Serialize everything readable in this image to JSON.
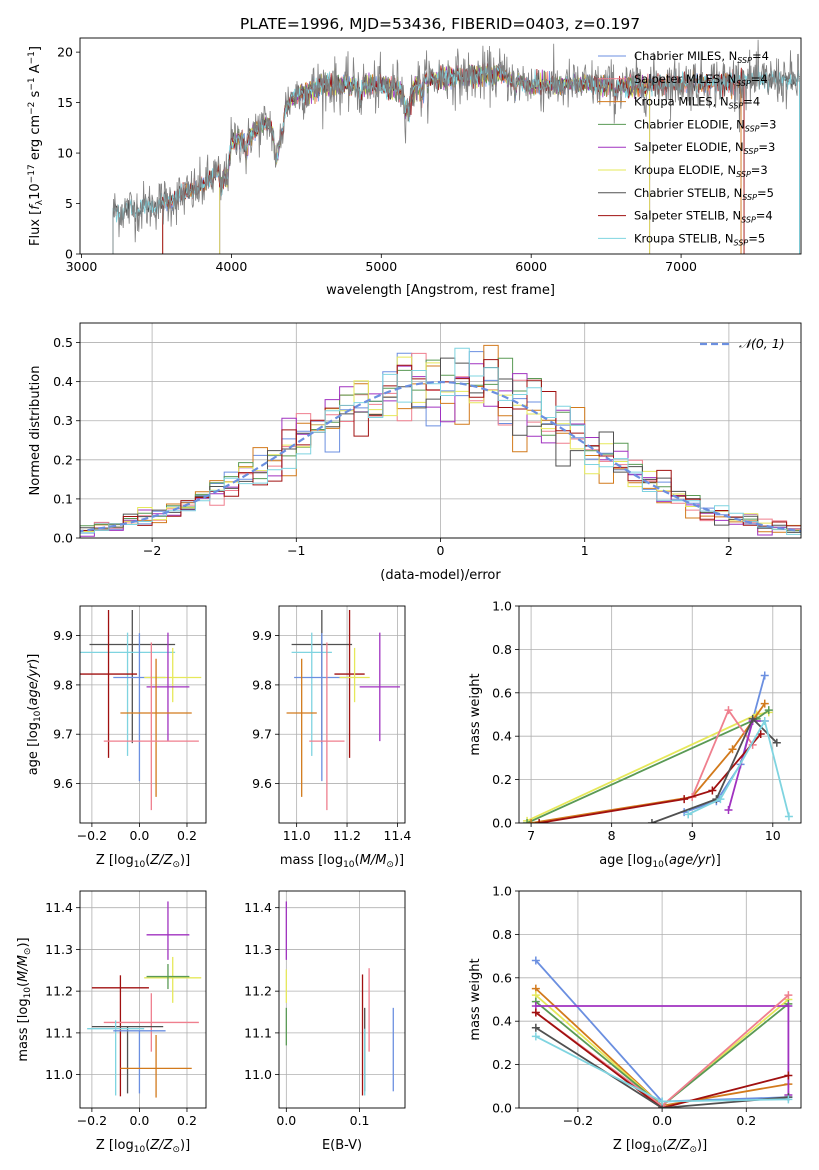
{
  "figure": {
    "title": "PLATE=1996, MJD=53436, FIBERID=0403, z=0.197"
  },
  "colors": {
    "Chabrier MILES": "#6b8fe0",
    "Salpeter MILES": "#ef7f8e",
    "Kroupa MILES": "#d27a1c",
    "Chabrier ELODIE": "#5a9a55",
    "Salpeter ELODIE": "#a032c0",
    "Kroupa ELODIE": "#e6e85a",
    "Chabrier STELIB": "#505050",
    "Salpeter STELIB": "#a01010",
    "Kroupa STELIB": "#7fd4e0",
    "data": "#808080",
    "normal": "#6b8fe0",
    "orangeB": "#e07020",
    "pinkB": "#e080c0",
    "limeB": "#a0e040"
  },
  "chart_data": [
    {
      "id": "spectrum",
      "type": "line",
      "xlabel": "wavelength [Angstrom, rest frame]",
      "ylabel": "Flux [f_λ10^-17 erg cm^-2 s^-1 A^-1]",
      "xlim": [
        2990,
        7800
      ],
      "ylim": [
        0,
        21.4
      ],
      "xticks": [
        3000,
        4000,
        5000,
        6000,
        7000
      ],
      "yticks": [
        0,
        5,
        10,
        15,
        20
      ],
      "grid": false,
      "legend_position": "upper-right",
      "legend": [
        {
          "series": "Chabrier MILES",
          "label": "Chabrier MILES, N",
          "sub": "SSP",
          "suffix": "=4"
        },
        {
          "series": "Salpeter MILES",
          "label": "Salpeter MILES, N",
          "sub": "SSP",
          "suffix": "=4"
        },
        {
          "series": "Kroupa MILES",
          "label": "Kroupa MILES, N",
          "sub": "SSP",
          "suffix": "=4"
        },
        {
          "series": "Chabrier ELODIE",
          "label": "Chabrier ELODIE, N",
          "sub": "SSP",
          "suffix": "=3"
        },
        {
          "series": "Salpeter ELODIE",
          "label": "Salpeter ELODIE, N",
          "sub": "SSP",
          "suffix": "=3"
        },
        {
          "series": "Kroupa ELODIE",
          "label": "Kroupa ELODIE, N",
          "sub": "SSP",
          "suffix": "=3"
        },
        {
          "series": "Chabrier STELIB",
          "label": "Chabrier STELIB, N",
          "sub": "SSP",
          "suffix": "=5"
        },
        {
          "series": "Salpeter STELIB",
          "label": "Salpeter STELIB, N",
          "sub": "SSP",
          "suffix": "=4"
        },
        {
          "series": "Kroupa STELIB",
          "label": "Kroupa STELIB, N",
          "sub": "SSP",
          "suffix": "=5"
        }
      ],
      "continuum": [
        [
          3200,
          4.2
        ],
        [
          3400,
          4.6
        ],
        [
          3600,
          5.3
        ],
        [
          3800,
          6.5
        ],
        [
          3900,
          8.0
        ],
        [
          4000,
          11.0
        ],
        [
          4200,
          12.6
        ],
        [
          4300,
          13.2
        ],
        [
          4400,
          15.6
        ],
        [
          4600,
          16.8
        ],
        [
          4800,
          16.6
        ],
        [
          5000,
          16.5
        ],
        [
          5200,
          16.8
        ],
        [
          5400,
          17.6
        ],
        [
          5600,
          17.5
        ],
        [
          5800,
          17.9
        ],
        [
          6000,
          16.8
        ],
        [
          6200,
          16.6
        ],
        [
          6400,
          16.8
        ],
        [
          6600,
          16.5
        ],
        [
          6800,
          16.9
        ],
        [
          7000,
          17.0
        ],
        [
          7200,
          17.1
        ],
        [
          7400,
          17.2
        ],
        [
          7700,
          17.2
        ]
      ],
      "model_ranges": {
        "Chabrier MILES": [
          3540,
          7400
        ],
        "Salpeter MILES": [
          3540,
          7400
        ],
        "Kroupa MILES": [
          3540,
          7400
        ],
        "Chabrier ELODIE": [
          3920,
          6790
        ],
        "Salpeter ELODIE": [
          3920,
          6790
        ],
        "Kroupa ELODIE": [
          3920,
          6790
        ],
        "Chabrier STELIB": [
          3210,
          7790
        ],
        "Salpeter STELIB": [
          3540,
          7420
        ],
        "Kroupa STELIB": [
          3210,
          7790
        ]
      }
    },
    {
      "id": "residuals",
      "type": "histogram",
      "xlabel": "(data-model)/error",
      "ylabel": "Normed distribution",
      "xlim": [
        -2.5,
        2.5
      ],
      "ylim": [
        0,
        0.55
      ],
      "xticks": [
        -2,
        -1,
        0,
        1,
        2
      ],
      "yticks": [
        0.0,
        0.1,
        0.2,
        0.3,
        0.4,
        0.5
      ],
      "grid": true,
      "legend_position": "upper-right",
      "legend": [
        {
          "label": "𝒩(0, 1)"
        }
      ],
      "bin_width": 0.1
    },
    {
      "id": "age_vs_Z",
      "type": "errorbar",
      "xlabel": "Z [log10(Z/Z⊙)]",
      "ylabel": "age  [log10(age/yr)]",
      "xlim": [
        -0.25,
        0.28
      ],
      "ylim": [
        9.52,
        9.96
      ],
      "xticks": [
        -0.2,
        0.0,
        0.2
      ],
      "yticks": [
        9.6,
        9.7,
        9.8,
        9.9
      ],
      "grid": true,
      "points": [
        {
          "series": "Chabrier STELIB",
          "x": -0.03,
          "xerr": 0.18,
          "y": 9.882,
          "yerr": [
            0.2,
            0.07
          ]
        },
        {
          "series": "Kroupa STELIB",
          "x": -0.05,
          "xerr": 0.2,
          "y": 9.866,
          "yerr": [
            0.21,
            0.04
          ]
        },
        {
          "series": "Salpeter STELIB",
          "x": -0.13,
          "xerr": 0.12,
          "y": 9.822,
          "yerr": [
            0.17,
            0.13
          ]
        },
        {
          "series": "Chabrier MILES",
          "x": 0.0,
          "xerr": 0.11,
          "y": 9.815,
          "yerr": [
            0.21,
            0.09
          ]
        },
        {
          "series": "Kroupa ELODIE",
          "x": 0.14,
          "xerr": 0.12,
          "y": 9.815,
          "yerr": [
            0.05,
            0.06
          ]
        },
        {
          "series": "Salpeter ELODIE",
          "x": 0.12,
          "xerr": 0.09,
          "y": 9.796,
          "yerr": [
            0.11,
            0.11
          ]
        },
        {
          "series": "Kroupa MILES",
          "x": 0.07,
          "xerr": 0.15,
          "y": 9.743,
          "yerr": [
            0.17,
            0.11
          ]
        },
        {
          "series": "Salpeter MILES",
          "x": 0.05,
          "xerr": 0.2,
          "y": 9.686,
          "yerr": [
            0.14,
            0.2
          ]
        }
      ]
    },
    {
      "id": "age_vs_mass",
      "type": "errorbar",
      "xlabel": "mass [log10(M/M⊙)]",
      "ylabel": "",
      "xlim": [
        10.93,
        11.43
      ],
      "ylim": [
        9.52,
        9.96
      ],
      "xticks": [
        11.0,
        11.2,
        11.4
      ],
      "yticks": [
        9.6,
        9.7,
        9.8,
        9.9
      ],
      "grid": true,
      "points": [
        {
          "series": "Chabrier STELIB",
          "x": 11.1,
          "xerr": 0.12,
          "y": 9.882,
          "yerr": [
            0.2,
            0.07
          ]
        },
        {
          "series": "Kroupa STELIB",
          "x": 11.06,
          "xerr": 0.08,
          "y": 9.866,
          "yerr": [
            0.21,
            0.04
          ]
        },
        {
          "series": "Chabrier MILES",
          "x": 11.1,
          "xerr": 0.11,
          "y": 9.815,
          "yerr": [
            0.21,
            0.09
          ]
        },
        {
          "series": "Salpeter STELIB",
          "x": 11.21,
          "xerr": 0.06,
          "y": 9.822,
          "yerr": [
            0.17,
            0.13
          ]
        },
        {
          "series": "Kroupa ELODIE",
          "x": 11.23,
          "xerr": 0.06,
          "y": 9.815,
          "yerr": [
            0.05,
            0.06
          ]
        },
        {
          "series": "Salpeter ELODIE",
          "x": 11.33,
          "xerr": 0.08,
          "y": 9.796,
          "yerr": [
            0.11,
            0.11
          ]
        },
        {
          "series": "Kroupa MILES",
          "x": 11.02,
          "xerr": 0.06,
          "y": 9.743,
          "yerr": [
            0.17,
            0.11
          ]
        },
        {
          "series": "Salpeter MILES",
          "x": 11.12,
          "xerr": 0.07,
          "y": 9.686,
          "yerr": [
            0.14,
            0.2
          ]
        }
      ]
    },
    {
      "id": "weight_vs_age",
      "type": "line",
      "xlabel": "age  [log10(age/yr)]",
      "ylabel": "mass weight",
      "xlim": [
        6.85,
        10.35
      ],
      "ylim": [
        0,
        1
      ],
      "xticks": [
        7,
        8,
        9,
        10
      ],
      "yticks": [
        0.0,
        0.2,
        0.4,
        0.6,
        0.8,
        1.0
      ],
      "grid": true,
      "series": [
        {
          "name": "Chabrier MILES",
          "points": [
            [
              8.9,
              0.05
            ],
            [
              9.3,
              0.1
            ],
            [
              9.6,
              0.27
            ],
            [
              9.9,
              0.68
            ]
          ]
        },
        {
          "name": "Kroupa ELODIE",
          "points": [
            [
              6.95,
              0.01
            ],
            [
              9.8,
              0.5
            ],
            [
              9.95,
              0.51
            ]
          ]
        },
        {
          "name": "Chabrier ELODIE",
          "points": [
            [
              6.95,
              0.0
            ],
            [
              9.8,
              0.48
            ],
            [
              9.95,
              0.52
            ]
          ]
        },
        {
          "name": "Kroupa MILES",
          "points": [
            [
              7.0,
              0.0
            ],
            [
              9.0,
              0.12
            ],
            [
              9.5,
              0.34
            ],
            [
              9.9,
              0.55
            ]
          ]
        },
        {
          "name": "Salpeter MILES",
          "points": [
            [
              9.0,
              0.12
            ],
            [
              9.45,
              0.52
            ],
            [
              9.75,
              0.36
            ]
          ]
        },
        {
          "name": "Salpeter ELODIE",
          "points": [
            [
              9.45,
              0.06
            ],
            [
              9.75,
              0.47
            ],
            [
              9.9,
              0.47
            ]
          ]
        },
        {
          "name": "Salpeter STELIB",
          "points": [
            [
              7.1,
              0.0
            ],
            [
              8.9,
              0.11
            ],
            [
              9.25,
              0.15
            ],
            [
              9.85,
              0.41
            ]
          ]
        },
        {
          "name": "Chabrier STELIB",
          "points": [
            [
              8.5,
              0.0
            ],
            [
              9.3,
              0.11
            ],
            [
              9.75,
              0.48
            ],
            [
              10.05,
              0.37
            ]
          ]
        },
        {
          "name": "Kroupa STELIB",
          "points": [
            [
              8.95,
              0.04
            ],
            [
              9.35,
              0.11
            ],
            [
              9.9,
              0.47
            ],
            [
              10.2,
              0.03
            ]
          ]
        }
      ]
    },
    {
      "id": "mass_vs_Z",
      "type": "errorbar",
      "xlabel": "Z [log10(Z/Z⊙)]",
      "ylabel": "mass [log10(M/M⊙)]",
      "xlim": [
        -0.25,
        0.28
      ],
      "ylim": [
        10.92,
        11.44
      ],
      "xticks": [
        -0.2,
        0.0,
        0.2
      ],
      "yticks": [
        11.0,
        11.1,
        11.2,
        11.3,
        11.4
      ],
      "grid": true,
      "points": [
        {
          "series": "Salpeter ELODIE",
          "x": 0.12,
          "xerr": 0.09,
          "y": 11.335,
          "yerr": [
            0.06,
            0.08
          ]
        },
        {
          "series": "Kroupa ELODIE",
          "x": 0.14,
          "xerr": 0.12,
          "y": 11.232,
          "yerr": [
            0.06,
            0.05
          ]
        },
        {
          "series": "Chabrier ELODIE",
          "x": 0.12,
          "xerr": 0.09,
          "y": 11.235,
          "yerr": [
            0.03,
            0.03
          ]
        },
        {
          "series": "Salpeter STELIB",
          "x": -0.08,
          "xerr": 0.12,
          "y": 11.208,
          "yerr": [
            0.26,
            0.03
          ]
        },
        {
          "series": "Salpeter MILES",
          "x": 0.05,
          "xerr": 0.2,
          "y": 11.125,
          "yerr": [
            0.07,
            0.07
          ]
        },
        {
          "series": "Chabrier STELIB",
          "x": -0.05,
          "xerr": 0.15,
          "y": 11.115,
          "yerr": [
            0.16,
            0.0
          ]
        },
        {
          "series": "Kroupa STELIB",
          "x": -0.1,
          "xerr": 0.12,
          "y": 11.11,
          "yerr": [
            0.16,
            0.02
          ]
        },
        {
          "series": "Chabrier MILES",
          "x": 0.0,
          "xerr": 0.11,
          "y": 11.105,
          "yerr": [
            0.15,
            0.0
          ]
        },
        {
          "series": "Kroupa MILES",
          "x": 0.07,
          "xerr": 0.15,
          "y": 11.015,
          "yerr": [
            0.07,
            0.08
          ]
        }
      ]
    },
    {
      "id": "mass_vs_EBV",
      "type": "errorbar",
      "xlabel": "E(B-V)",
      "ylabel": "",
      "xlim": [
        -0.01,
        0.162
      ],
      "ylim": [
        10.92,
        11.44
      ],
      "xticks": [
        0.0,
        0.1
      ],
      "yticks": [
        11.0,
        11.1,
        11.2,
        11.3,
        11.4
      ],
      "grid": true,
      "points": [
        {
          "series": "Salpeter ELODIE",
          "x": 0.0,
          "y": 11.335,
          "yerr": [
            0.06,
            0.08
          ]
        },
        {
          "series": "Kroupa ELODIE",
          "x": 0.0,
          "y": 11.232,
          "yerr": [
            0.06,
            0.02
          ]
        },
        {
          "series": "Chabrier ELODIE",
          "x": 0.0,
          "y": 11.14,
          "yerr": [
            0.07,
            0.02
          ]
        },
        {
          "series": "Salpeter STELIB",
          "x": 0.104,
          "y": 11.14,
          "yerr": [
            0.19,
            0.1
          ]
        },
        {
          "series": "Chabrier STELIB",
          "x": 0.107,
          "y": 11.1,
          "yerr": [
            0.14,
            0.06
          ]
        },
        {
          "series": "Kroupa STELIB",
          "x": 0.107,
          "y": 11.07,
          "yerr": [
            0.12,
            0.04
          ]
        },
        {
          "series": "Salpeter MILES",
          "x": 0.113,
          "y": 11.125,
          "yerr": [
            0.07,
            0.13
          ]
        },
        {
          "series": "Chabrier MILES",
          "x": 0.146,
          "y": 11.06,
          "yerr": [
            0.1,
            0.1
          ]
        }
      ]
    },
    {
      "id": "weight_vs_Z",
      "type": "line",
      "xlabel": "Z [log10(Z/Z⊙)]",
      "ylabel": "mass weight",
      "xlim": [
        -0.34,
        0.33
      ],
      "ylim": [
        0,
        1
      ],
      "xticks": [
        -0.2,
        0.0,
        0.2
      ],
      "yticks": [
        0.0,
        0.2,
        0.4,
        0.6,
        0.8,
        1.0
      ],
      "grid": true,
      "series": [
        {
          "name": "Chabrier MILES",
          "points": [
            [
              -0.3,
              0.68
            ],
            [
              0.0,
              0.03
            ],
            [
              0.3,
              0.05
            ]
          ]
        },
        {
          "name": "Kroupa MILES",
          "points": [
            [
              -0.3,
              0.55
            ],
            [
              0.0,
              0.01
            ],
            [
              0.3,
              0.11
            ]
          ]
        },
        {
          "name": "Kroupa ELODIE",
          "points": [
            [
              -0.3,
              0.52
            ],
            [
              0.0,
              0.01
            ],
            [
              0.3,
              0.5
            ]
          ]
        },
        {
          "name": "Chabrier ELODIE",
          "points": [
            [
              -0.3,
              0.49
            ],
            [
              0.0,
              0.01
            ],
            [
              0.3,
              0.48
            ]
          ]
        },
        {
          "name": "Salpeter ELODIE",
          "points": [
            [
              -0.3,
              0.47
            ],
            [
              0.3,
              0.47
            ],
            [
              0.3,
              0.06
            ]
          ]
        },
        {
          "name": "Salpeter MILES",
          "points": [
            [
              -0.3,
              0.44
            ],
            [
              0.0,
              0.01
            ],
            [
              0.3,
              0.52
            ]
          ]
        },
        {
          "name": "Salpeter STELIB",
          "points": [
            [
              -0.3,
              0.44
            ],
            [
              0.0,
              0.0
            ],
            [
              0.3,
              0.15
            ]
          ]
        },
        {
          "name": "Chabrier STELIB",
          "points": [
            [
              -0.3,
              0.37
            ],
            [
              0.0,
              0.0
            ],
            [
              0.3,
              0.05
            ]
          ]
        },
        {
          "name": "Kroupa STELIB",
          "points": [
            [
              -0.3,
              0.33
            ],
            [
              0.0,
              0.03
            ],
            [
              0.3,
              0.04
            ]
          ]
        }
      ]
    }
  ]
}
